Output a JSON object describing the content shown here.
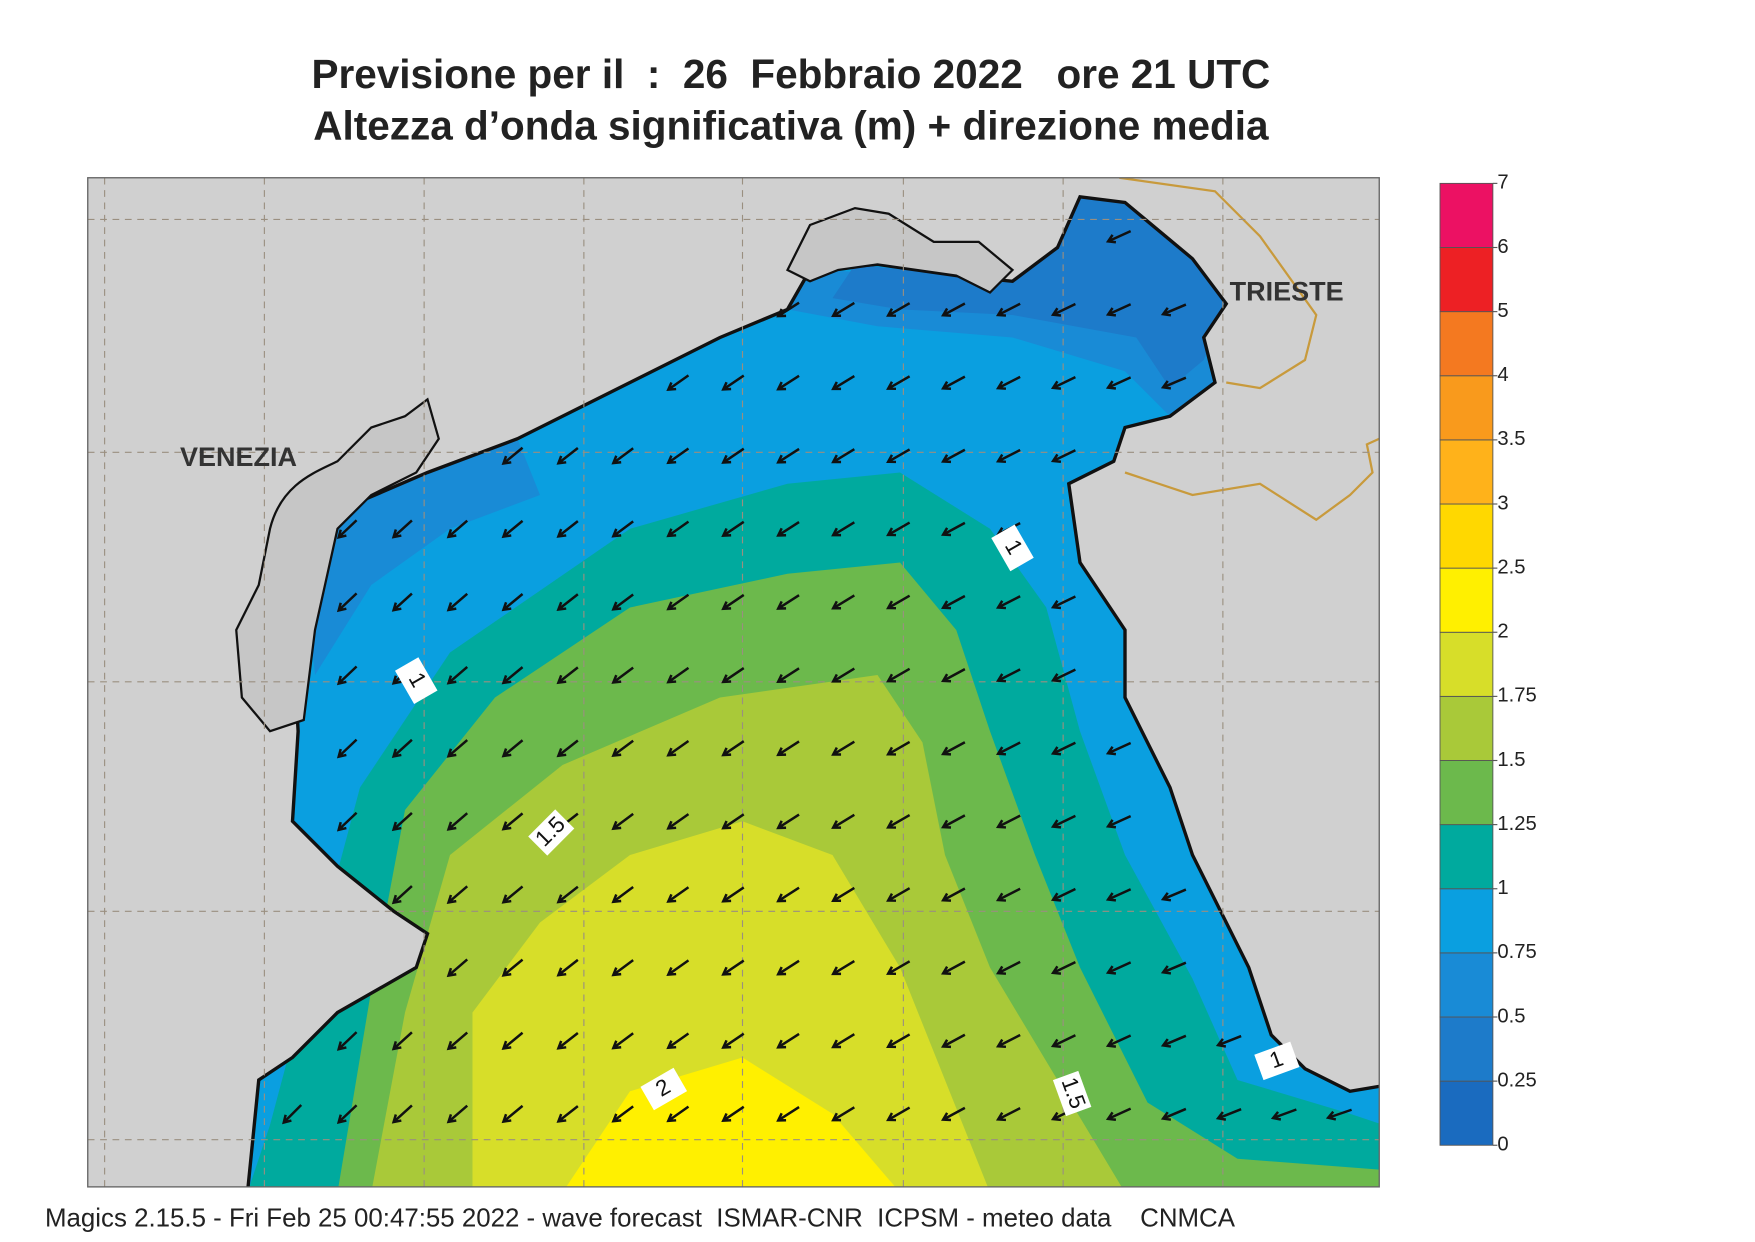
{
  "header": {
    "title": "Previsione per il  :  26  Febbraio 2022   ore 21 UTC",
    "subtitle": "Altezza d’onda significativa (m) + direzione media"
  },
  "map": {
    "cities": [
      "VENEZIA",
      "TRIESTE"
    ],
    "contour_labels": [
      "1",
      "1",
      "1.5",
      "2",
      "1.5",
      "1"
    ]
  },
  "colorbar": {
    "ticks": [
      0,
      0.25,
      0.5,
      0.75,
      1,
      1.25,
      1.5,
      1.75,
      2,
      2.5,
      3,
      3.5,
      4,
      5,
      6,
      7
    ],
    "colors": [
      "#1a6bbf",
      "#1d7bca",
      "#198bd6",
      "#0a9fe0",
      "#00aa9e",
      "#6cb94c",
      "#a9c939",
      "#d7de29",
      "#fff000",
      "#ffd800",
      "#ffb21a",
      "#f99a1c",
      "#f47920",
      "#ed2024",
      "#ec1163"
    ]
  },
  "footer": "Magics 2.15.5 - Fri Feb 25 00:47:55 2022 - wave forecast  ISMAR-CNR  ICPSM - meteo data    CNMCA"
}
